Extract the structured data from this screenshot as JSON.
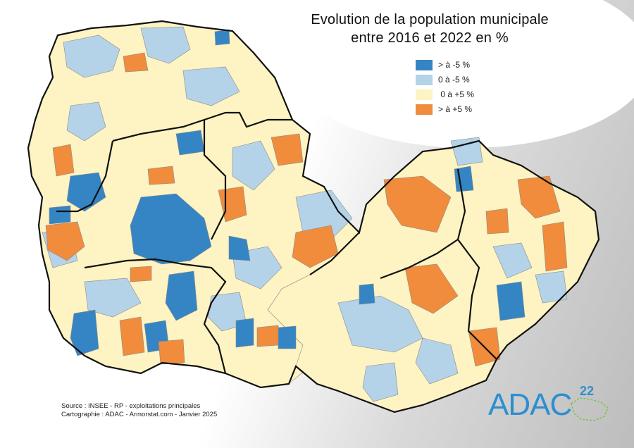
{
  "title": {
    "line1": "Evolution de la population municipale",
    "line2": "entre 2016 et 2022 en %"
  },
  "legend": [
    {
      "label": "> à -5 %",
      "color": "#3585c4"
    },
    {
      "label": "0 à -5 %",
      "color": "#b5d3e8"
    },
    {
      "label": " 0 à +5 %",
      "color": "#fdf3c3"
    },
    {
      "label": "> à +5 %",
      "color": "#f08c3c"
    }
  ],
  "footer": {
    "source": "Source : INSEE - RP - exploitations principales",
    "cartography": "Cartographie : ADAC - Armorstat.com - Janvier 2025"
  },
  "logo": {
    "text": "ADAC",
    "number": "22"
  },
  "colors": {
    "background_gradient_end": "#bdbdbd",
    "boundary": "#111111"
  }
}
